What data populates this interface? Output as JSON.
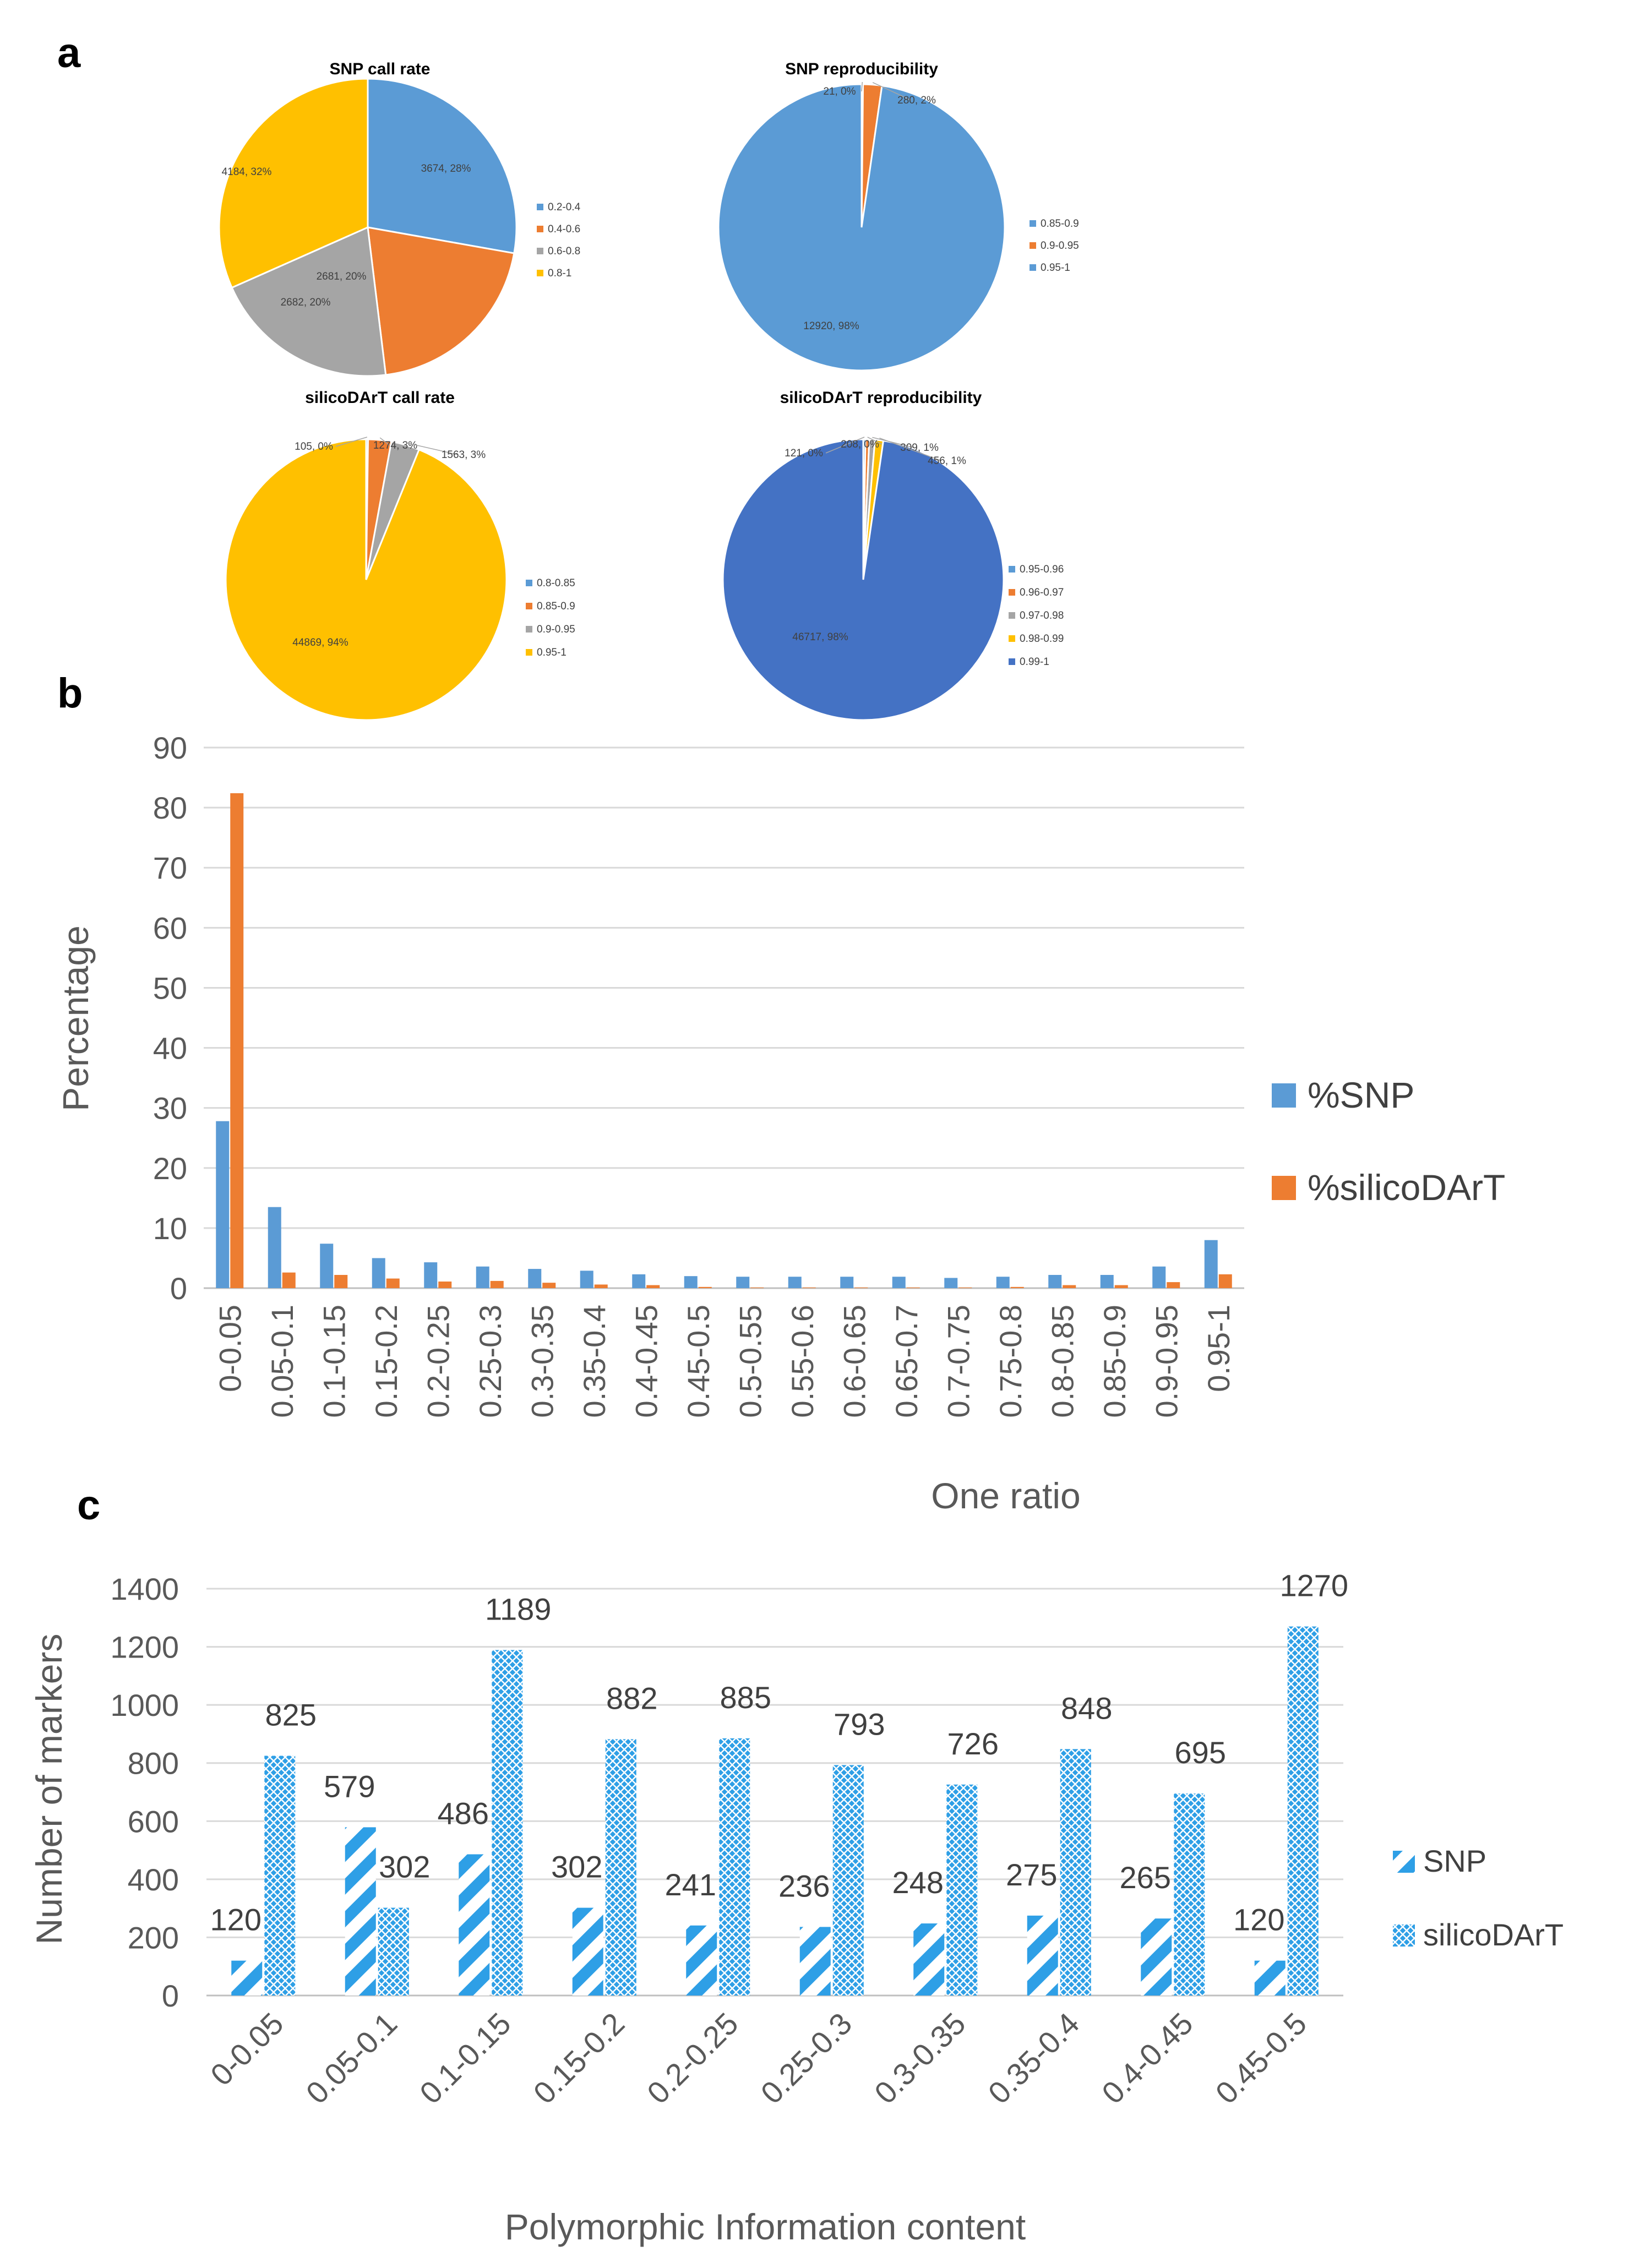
{
  "panels": {
    "a": "a",
    "b": "b",
    "c": "c"
  },
  "colors": {
    "blue": "#5B9BD5",
    "orange": "#ED7D31",
    "gray": "#A5A5A5",
    "yellow": "#FFC000",
    "darkblue": "#4472C4",
    "grid": "#D9D9D9",
    "hatch": "#2E9FE6"
  },
  "chart_data": [
    {
      "id": "snp-call-rate",
      "type": "pie",
      "title": "SNP call rate",
      "slices": [
        {
          "category": "0.2-0.4",
          "value": 3674,
          "label": "3674, 28%",
          "color": "#5B9BD5"
        },
        {
          "category": "0.4-0.6",
          "value": 2681,
          "label": "2681, 20%",
          "color": "#ED7D31"
        },
        {
          "category": "0.6-0.8",
          "value": 2682,
          "label": "2682, 20%",
          "color": "#A5A5A5"
        },
        {
          "category": "0.8-1",
          "value": 4184,
          "label": "4184, 32%",
          "color": "#FFC000"
        }
      ]
    },
    {
      "id": "snp-reproducibility",
      "type": "pie",
      "title": "SNP reproducibility",
      "slices": [
        {
          "category": "0.85-0.9",
          "value": 21,
          "label": "21, 0%",
          "color": "#5B9BD5"
        },
        {
          "category": "0.9-0.95",
          "value": 280,
          "label": "280, 2%",
          "color": "#ED7D31"
        },
        {
          "category": "0.95-1",
          "value": 12920,
          "label": "12920, 98%",
          "color": "#5B9BD5"
        }
      ]
    },
    {
      "id": "silicodart-call-rate",
      "type": "pie",
      "title": "silicoDArT call rate",
      "slices": [
        {
          "category": "0.8-0.85",
          "value": 105,
          "label": "105, 0%",
          "color": "#5B9BD5"
        },
        {
          "category": "0.85-0.9",
          "value": 1274,
          "label": "1274, 3%",
          "color": "#ED7D31"
        },
        {
          "category": "0.9-0.95",
          "value": 1563,
          "label": "1563, 3%",
          "color": "#A5A5A5"
        },
        {
          "category": "0.95-1",
          "value": 44869,
          "label": "44869, 94%",
          "color": "#FFC000"
        }
      ]
    },
    {
      "id": "silicodart-reproducibility",
      "type": "pie",
      "title": "silicoDArT reproducibility",
      "slices": [
        {
          "category": "0.95-0.96",
          "value": 121,
          "label": "121, 0%",
          "color": "#5B9BD5"
        },
        {
          "category": "0.96-0.97",
          "value": 208,
          "label": "208, 0%",
          "color": "#ED7D31"
        },
        {
          "category": "0.97-0.98",
          "value": 309,
          "label": "309, 1%",
          "color": "#A5A5A5"
        },
        {
          "category": "0.98-0.99",
          "value": 456,
          "label": "456, 1%",
          "color": "#FFC000"
        },
        {
          "category": "0.99-1",
          "value": 46717,
          "label": "46717, 98%",
          "color": "#4472C4"
        }
      ]
    },
    {
      "id": "one-ratio",
      "type": "bar",
      "xlabel": "One ratio",
      "ylabel": "Percentage",
      "ylim": [
        0,
        90
      ],
      "yticks": [
        0,
        10,
        20,
        30,
        40,
        50,
        60,
        70,
        80,
        90
      ],
      "grid": true,
      "legend": "right",
      "categories": [
        "0-0.05",
        "0.05-0.1",
        "0.1-0.15",
        "0.15-0.2",
        "0.2-0.25",
        "0.25-0.3",
        "0.3-0.35",
        "0.35-0.4",
        "0.4-0.45",
        "0.45-0.5",
        "0.5-0.55",
        "0.55-0.6",
        "0.6-0.65",
        "0.65-0.7",
        "0.7-0.75",
        "0.75-0.8",
        "0.8-0.85",
        "0.85-0.9",
        "0.9-0.95",
        "0.95-1"
      ],
      "series": [
        {
          "name": "%SNP",
          "color": "#5B9BD5",
          "values": [
            27.8,
            13.5,
            7.4,
            5.0,
            4.3,
            3.6,
            3.2,
            2.9,
            2.3,
            2.0,
            1.9,
            1.9,
            1.9,
            1.9,
            1.7,
            1.9,
            2.2,
            2.2,
            3.6,
            8.0
          ]
        },
        {
          "name": "%silicoDArT",
          "color": "#ED7D31",
          "values": [
            82.4,
            2.6,
            2.2,
            1.6,
            1.1,
            1.2,
            0.9,
            0.6,
            0.5,
            0.2,
            0.1,
            0.1,
            0.1,
            0.1,
            0.1,
            0.2,
            0.5,
            0.5,
            1.0,
            2.3
          ]
        }
      ]
    },
    {
      "id": "pic",
      "type": "bar",
      "xlabel": "Polymorphic Information content",
      "ylabel": "Number of markers",
      "ylim": [
        0,
        1400
      ],
      "yticks": [
        0,
        200,
        400,
        600,
        800,
        1000,
        1200,
        1400
      ],
      "grid": true,
      "legend": "right",
      "categories": [
        "0-0.05",
        "0.05-0.1",
        "0.1-0.15",
        "0.15-0.2",
        "0.2-0.25",
        "0.25-0.3",
        "0.3-0.35",
        "0.35-0.4",
        "0.4-0.45",
        "0.45-0.5"
      ],
      "series": [
        {
          "name": "SNP",
          "pattern": "diagonal-stripes",
          "values": [
            120,
            579,
            486,
            302,
            241,
            236,
            248,
            275,
            265,
            120
          ]
        },
        {
          "name": "silicoDArT",
          "pattern": "crosshatch",
          "values": [
            825,
            302,
            1189,
            882,
            885,
            793,
            726,
            848,
            695,
            1270
          ]
        }
      ]
    }
  ]
}
